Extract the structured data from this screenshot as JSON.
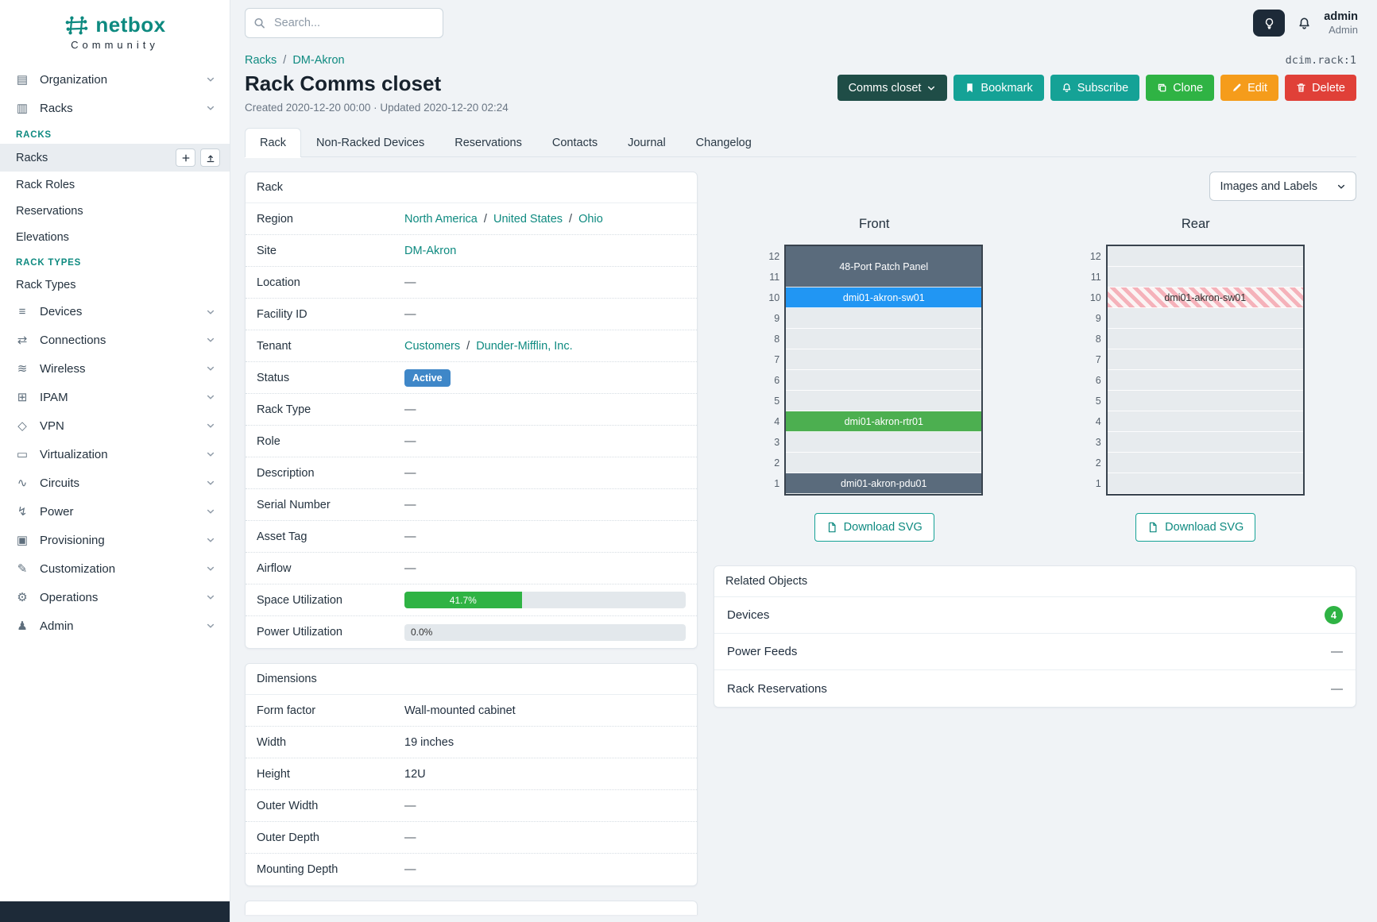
{
  "colors": {
    "accent_teal": "#0e8a80",
    "button_teal": "#15a296",
    "button_dark": "#1f4d47",
    "button_green": "#2fb344",
    "button_orange": "#f59c1b",
    "button_red": "#e04038",
    "status_blue": "#3f87c8",
    "progress_green": "#2fb344",
    "count_green": "#2fb344"
  },
  "sidebar": {
    "logo_text": "netbox",
    "logo_sub": "Community",
    "groups_top": [
      {
        "label": "Organization",
        "icon": "organization-icon"
      },
      {
        "label": "Racks",
        "icon": "racks-icon",
        "expanded": true
      }
    ],
    "rack_sections": [
      {
        "header": "RACKS",
        "items": [
          {
            "label": "Racks",
            "active": true,
            "actions": [
              {
                "icon": "plus-icon",
                "name": "add-rack-button"
              },
              {
                "icon": "import-icon",
                "name": "import-racks-button"
              }
            ]
          },
          {
            "label": "Rack Roles"
          },
          {
            "label": "Reservations"
          },
          {
            "label": "Elevations"
          }
        ]
      },
      {
        "header": "RACK TYPES",
        "items": [
          {
            "label": "Rack Types"
          }
        ]
      }
    ],
    "groups_bottom": [
      {
        "label": "Devices",
        "icon": "devices-icon"
      },
      {
        "label": "Connections",
        "icon": "connections-icon"
      },
      {
        "label": "Wireless",
        "icon": "wireless-icon"
      },
      {
        "label": "IPAM",
        "icon": "ipam-icon"
      },
      {
        "label": "VPN",
        "icon": "vpn-icon"
      },
      {
        "label": "Virtualization",
        "icon": "virtualization-icon"
      },
      {
        "label": "Circuits",
        "icon": "circuits-icon"
      },
      {
        "label": "Power",
        "icon": "power-icon"
      },
      {
        "label": "Provisioning",
        "icon": "provisioning-icon"
      },
      {
        "label": "Customization",
        "icon": "customization-icon"
      },
      {
        "label": "Operations",
        "icon": "operations-icon"
      },
      {
        "label": "Admin",
        "icon": "admin-icon"
      }
    ]
  },
  "topbar": {
    "search_placeholder": "Search...",
    "user_name": "admin",
    "user_role": "Admin"
  },
  "header": {
    "breadcrumb": [
      {
        "label": "Racks"
      },
      {
        "label": "DM-Akron"
      }
    ],
    "separator": "/",
    "object_id": "dcim.rack:1",
    "title": "Rack Comms closet",
    "meta": "Created 2020-12-20 00:00 · Updated 2020-12-20 02:24",
    "actions": [
      {
        "label": "Comms closet",
        "style": "dark",
        "suffix_icon": "chevron-down-icon",
        "name": "comms-closet-dropdown"
      },
      {
        "label": "Bookmark",
        "style": "teal",
        "icon": "bookmark-icon",
        "name": "bookmark-button"
      },
      {
        "label": "Subscribe",
        "style": "teal",
        "icon": "bell-icon",
        "name": "subscribe-button"
      },
      {
        "label": "Clone",
        "style": "green",
        "icon": "copy-icon",
        "name": "clone-button"
      },
      {
        "label": "Edit",
        "style": "orange",
        "icon": "pencil-icon",
        "name": "edit-button"
      },
      {
        "label": "Delete",
        "style": "red",
        "icon": "trash-icon",
        "name": "delete-button"
      }
    ]
  },
  "tabs": [
    {
      "label": "Rack",
      "active": true
    },
    {
      "label": "Non-Racked Devices"
    },
    {
      "label": "Reservations"
    },
    {
      "label": "Contacts"
    },
    {
      "label": "Journal"
    },
    {
      "label": "Changelog"
    }
  ],
  "rack_panel": {
    "title": "Rack",
    "rows": [
      {
        "label": "Region",
        "type": "links",
        "links": [
          "North America",
          "United States",
          "Ohio"
        ]
      },
      {
        "label": "Site",
        "type": "links",
        "links": [
          "DM-Akron"
        ]
      },
      {
        "label": "Location",
        "type": "empty",
        "value": "—"
      },
      {
        "label": "Facility ID",
        "type": "empty",
        "value": "—"
      },
      {
        "label": "Tenant",
        "type": "links",
        "links": [
          "Customers",
          "Dunder-Mifflin, Inc."
        ]
      },
      {
        "label": "Status",
        "type": "badge",
        "value": "Active",
        "color": "#3f87c8"
      },
      {
        "label": "Rack Type",
        "type": "empty",
        "value": "—"
      },
      {
        "label": "Role",
        "type": "empty",
        "value": "—"
      },
      {
        "label": "Description",
        "type": "empty",
        "value": "—"
      },
      {
        "label": "Serial Number",
        "type": "empty",
        "value": "—"
      },
      {
        "label": "Asset Tag",
        "type": "empty",
        "value": "—"
      },
      {
        "label": "Airflow",
        "type": "empty",
        "value": "—"
      },
      {
        "label": "Space Utilization",
        "type": "progress",
        "percent": 41.7,
        "text": "41.7%"
      },
      {
        "label": "Power Utilization",
        "type": "progress",
        "percent": 0.0,
        "text": "0.0%"
      }
    ]
  },
  "dimensions_panel": {
    "title": "Dimensions",
    "rows": [
      {
        "label": "Form factor",
        "value": "Wall-mounted cabinet"
      },
      {
        "label": "Width",
        "value": "19 inches"
      },
      {
        "label": "Height",
        "value": "12U"
      },
      {
        "label": "Outer Width",
        "value": "—",
        "muted": true
      },
      {
        "label": "Outer Depth",
        "value": "—",
        "muted": true
      },
      {
        "label": "Mounting Depth",
        "value": "—",
        "muted": true
      }
    ]
  },
  "elevations": {
    "toolbar_label": "Images and Labels",
    "download_label": "Download SVG",
    "views": [
      {
        "title": "Front",
        "units": [
          {
            "u": 12,
            "span": 2,
            "label": "48-Port Patch Panel",
            "color": "#5a6b7c",
            "text_color": "#ffffff"
          },
          {
            "u": 10,
            "span": 1,
            "label": "dmi01-akron-sw01",
            "color": "#2196f3",
            "text_color": "#ffffff"
          },
          {
            "u": 9,
            "span": 1,
            "empty": true
          },
          {
            "u": 8,
            "span": 1,
            "empty": true
          },
          {
            "u": 7,
            "span": 1,
            "empty": true
          },
          {
            "u": 6,
            "span": 1,
            "empty": true
          },
          {
            "u": 5,
            "span": 1,
            "empty": true
          },
          {
            "u": 4,
            "span": 1,
            "label": "dmi01-akron-rtr01",
            "color": "#4caf50",
            "text_color": "#ffffff"
          },
          {
            "u": 3,
            "span": 1,
            "empty": true
          },
          {
            "u": 2,
            "span": 1,
            "empty": true
          },
          {
            "u": 1,
            "span": 1,
            "label": "dmi01-akron-pdu01",
            "color": "#5a6b7c",
            "text_color": "#ffffff"
          }
        ]
      },
      {
        "title": "Rear",
        "units": [
          {
            "u": 12,
            "span": 1,
            "empty": true
          },
          {
            "u": 11,
            "span": 1,
            "empty": true
          },
          {
            "u": 10,
            "span": 1,
            "label": "dmi01-akron-sw01",
            "striped": true,
            "text_color": "#333333"
          },
          {
            "u": 9,
            "span": 1,
            "empty": true
          },
          {
            "u": 8,
            "span": 1,
            "empty": true
          },
          {
            "u": 7,
            "span": 1,
            "empty": true
          },
          {
            "u": 6,
            "span": 1,
            "empty": true
          },
          {
            "u": 5,
            "span": 1,
            "empty": true
          },
          {
            "u": 4,
            "span": 1,
            "empty": true
          },
          {
            "u": 3,
            "span": 1,
            "empty": true
          },
          {
            "u": 2,
            "span": 1,
            "empty": true
          },
          {
            "u": 1,
            "span": 1,
            "empty": true
          }
        ]
      }
    ]
  },
  "related_objects": {
    "title": "Related Objects",
    "rows": [
      {
        "label": "Devices",
        "count": "4"
      },
      {
        "label": "Power Feeds",
        "value": "—"
      },
      {
        "label": "Rack Reservations",
        "value": "—"
      }
    ]
  }
}
